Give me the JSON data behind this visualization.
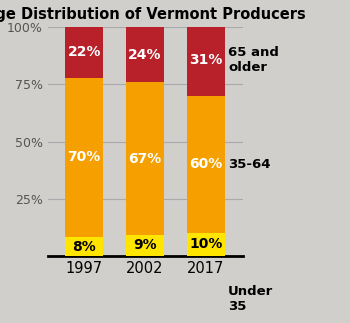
{
  "title": "Age Distribution of Vermont Producers",
  "years": [
    "1997",
    "2002",
    "2017"
  ],
  "under35": [
    8,
    9,
    10
  ],
  "age35_64": [
    70,
    67,
    60
  ],
  "age65plus": [
    22,
    24,
    31
  ],
  "color_under35": "#FFE500",
  "color_35_64": "#F5A000",
  "color_65plus": "#B8202A",
  "background_color": "#D0CFCC",
  "label_65plus": "65 and\nolder",
  "label_35_64": "35-64",
  "label_under35": "Under\n35",
  "yticks": [
    0,
    25,
    50,
    75,
    100
  ],
  "ytick_labels": [
    "",
    "25%",
    "50%",
    "75%",
    "100%"
  ],
  "bar_width": 0.62,
  "title_fontsize": 10.5,
  "annotation_fontsize": 10,
  "side_label_fontsize": 9.5,
  "xtick_fontsize": 10.5,
  "ytick_fontsize": 9
}
